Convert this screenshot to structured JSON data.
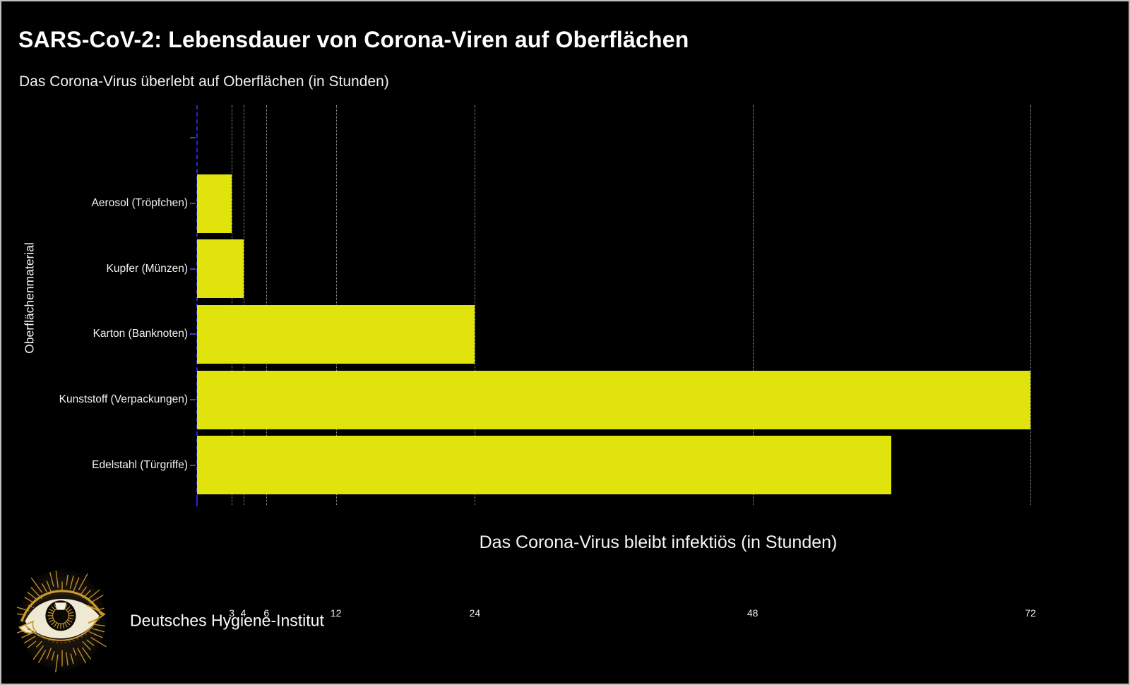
{
  "header": {
    "title": "SARS-CoV-2: Lebensdauer von Corona-Viren auf Oberflächen",
    "subtitle": "Das Corona-Virus überlebt auf Oberflächen (in Stunden)"
  },
  "chart_data": {
    "type": "bar",
    "orientation": "horizontal",
    "categories": [
      "Aerosol (Tröpfchen)",
      "Kupfer (Münzen)",
      "Karton (Banknoten)",
      "Kunststoff (Verpackungen)",
      "Edelstahl (Türgriffe)"
    ],
    "values": [
      3,
      4,
      24,
      72,
      60
    ],
    "unit": "Stunden",
    "xlabel": "Das Corona-Virus bleibt infektiös (in Stunden)",
    "ylabel": "Oberflächenmaterial",
    "xticks": [
      3,
      4,
      6,
      12,
      24,
      48,
      72
    ],
    "xlim": [
      0,
      72
    ],
    "grid": true,
    "legend": false,
    "empty_top_slot": true,
    "bar_color": "#e0e40c",
    "grid_color": "#9b9b9b",
    "zero_line_color": "#2428d8",
    "text_color": "#f2f2f2"
  },
  "footer": {
    "logo_icon": "eye-logo",
    "org": "Deutsches Hygiene-Institut"
  },
  "colors": {
    "background": "#000000",
    "border": "#bfbfbf",
    "logo_gold": "#c9992e"
  }
}
